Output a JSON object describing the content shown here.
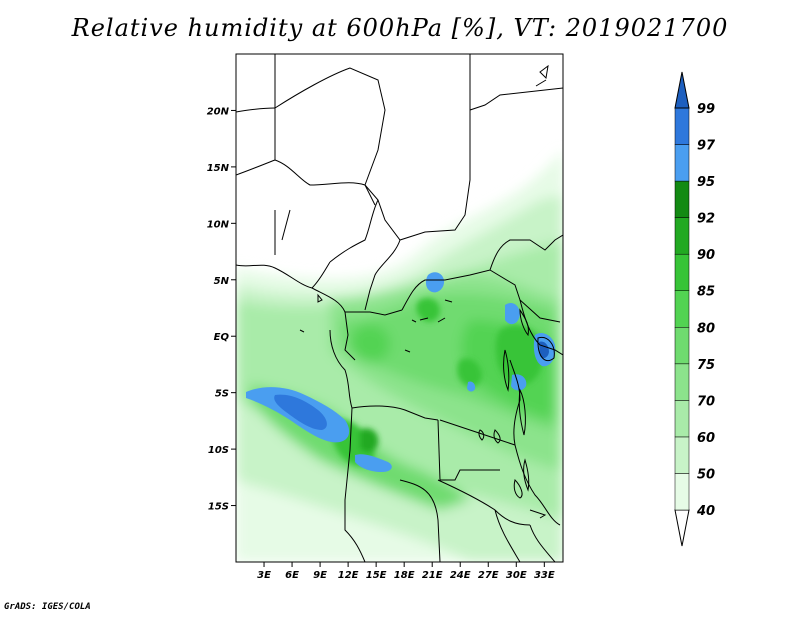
{
  "title": "Relative humidity at 600hPa [%], VT: 2019021700",
  "credit": "GrADS: IGES/COLA",
  "map": {
    "lon_range": [
      0,
      35
    ],
    "lat_range": [
      -20,
      25
    ],
    "lat_ticks": [
      {
        "value": 20,
        "label": "20N"
      },
      {
        "value": 15,
        "label": "15N"
      },
      {
        "value": 10,
        "label": "10N"
      },
      {
        "value": 5,
        "label": "5N"
      },
      {
        "value": 0,
        "label": "EQ"
      },
      {
        "value": -5,
        "label": "5S"
      },
      {
        "value": -10,
        "label": "10S"
      },
      {
        "value": -15,
        "label": "15S"
      }
    ],
    "lon_ticks": [
      {
        "value": 3,
        "label": "3E"
      },
      {
        "value": 6,
        "label": "6E"
      },
      {
        "value": 9,
        "label": "9E"
      },
      {
        "value": 12,
        "label": "12E"
      },
      {
        "value": 15,
        "label": "15E"
      },
      {
        "value": 18,
        "label": "18E"
      },
      {
        "value": 21,
        "label": "21E"
      },
      {
        "value": 24,
        "label": "24E"
      },
      {
        "value": 27,
        "label": "27E"
      },
      {
        "value": 30,
        "label": "30E"
      },
      {
        "value": 33,
        "label": "33E"
      }
    ]
  },
  "colorbar": {
    "levels": [
      "40",
      "50",
      "60",
      "70",
      "75",
      "80",
      "85",
      "90",
      "92",
      "95",
      "97",
      "99"
    ],
    "colors": [
      "#ffffff",
      "#e6fbe6",
      "#c8f3c8",
      "#a9eba9",
      "#8ce38c",
      "#6fdb6f",
      "#52d352",
      "#37c437",
      "#22a922",
      "#138a13",
      "#4a9ef0",
      "#2e78dc",
      "#1d5fbf"
    ]
  },
  "chart_data": {
    "type": "heatmap",
    "variable": "Relative humidity at 600hPa",
    "units": "%",
    "valid_time": "2019021700",
    "contour_levels": [
      40,
      50,
      60,
      70,
      75,
      80,
      85,
      90,
      92,
      95,
      97,
      99
    ],
    "regions": [
      {
        "lon": 31.5,
        "lat": -2.0,
        "rh": 97
      },
      {
        "lon": 21.0,
        "lat": 5.0,
        "rh": 96
      },
      {
        "lon": 5.5,
        "lat": -6.5,
        "rh": 97
      },
      {
        "lon": 13.5,
        "lat": -11.0,
        "rh": 96
      },
      {
        "lon": 24.0,
        "lat": -4.0,
        "rh": 92
      },
      {
        "lon": 29.5,
        "lat": -4.5,
        "rh": 95
      },
      {
        "lon": 12.0,
        "lat": -1.0,
        "rh": 90
      },
      {
        "lon": 30.5,
        "lat": 2.5,
        "rh": 96
      },
      {
        "lon": 20.0,
        "lat": -2.0,
        "rh": 88
      },
      {
        "lon": 3.0,
        "lat": 3.0,
        "rh": 75
      },
      {
        "lon": 22.0,
        "lat": -14.0,
        "rh": 80
      },
      {
        "lon": 28.0,
        "lat": 10.0,
        "rh": 70
      },
      {
        "lon": 10.0,
        "lat": 15.0,
        "rh": 40
      }
    ]
  }
}
